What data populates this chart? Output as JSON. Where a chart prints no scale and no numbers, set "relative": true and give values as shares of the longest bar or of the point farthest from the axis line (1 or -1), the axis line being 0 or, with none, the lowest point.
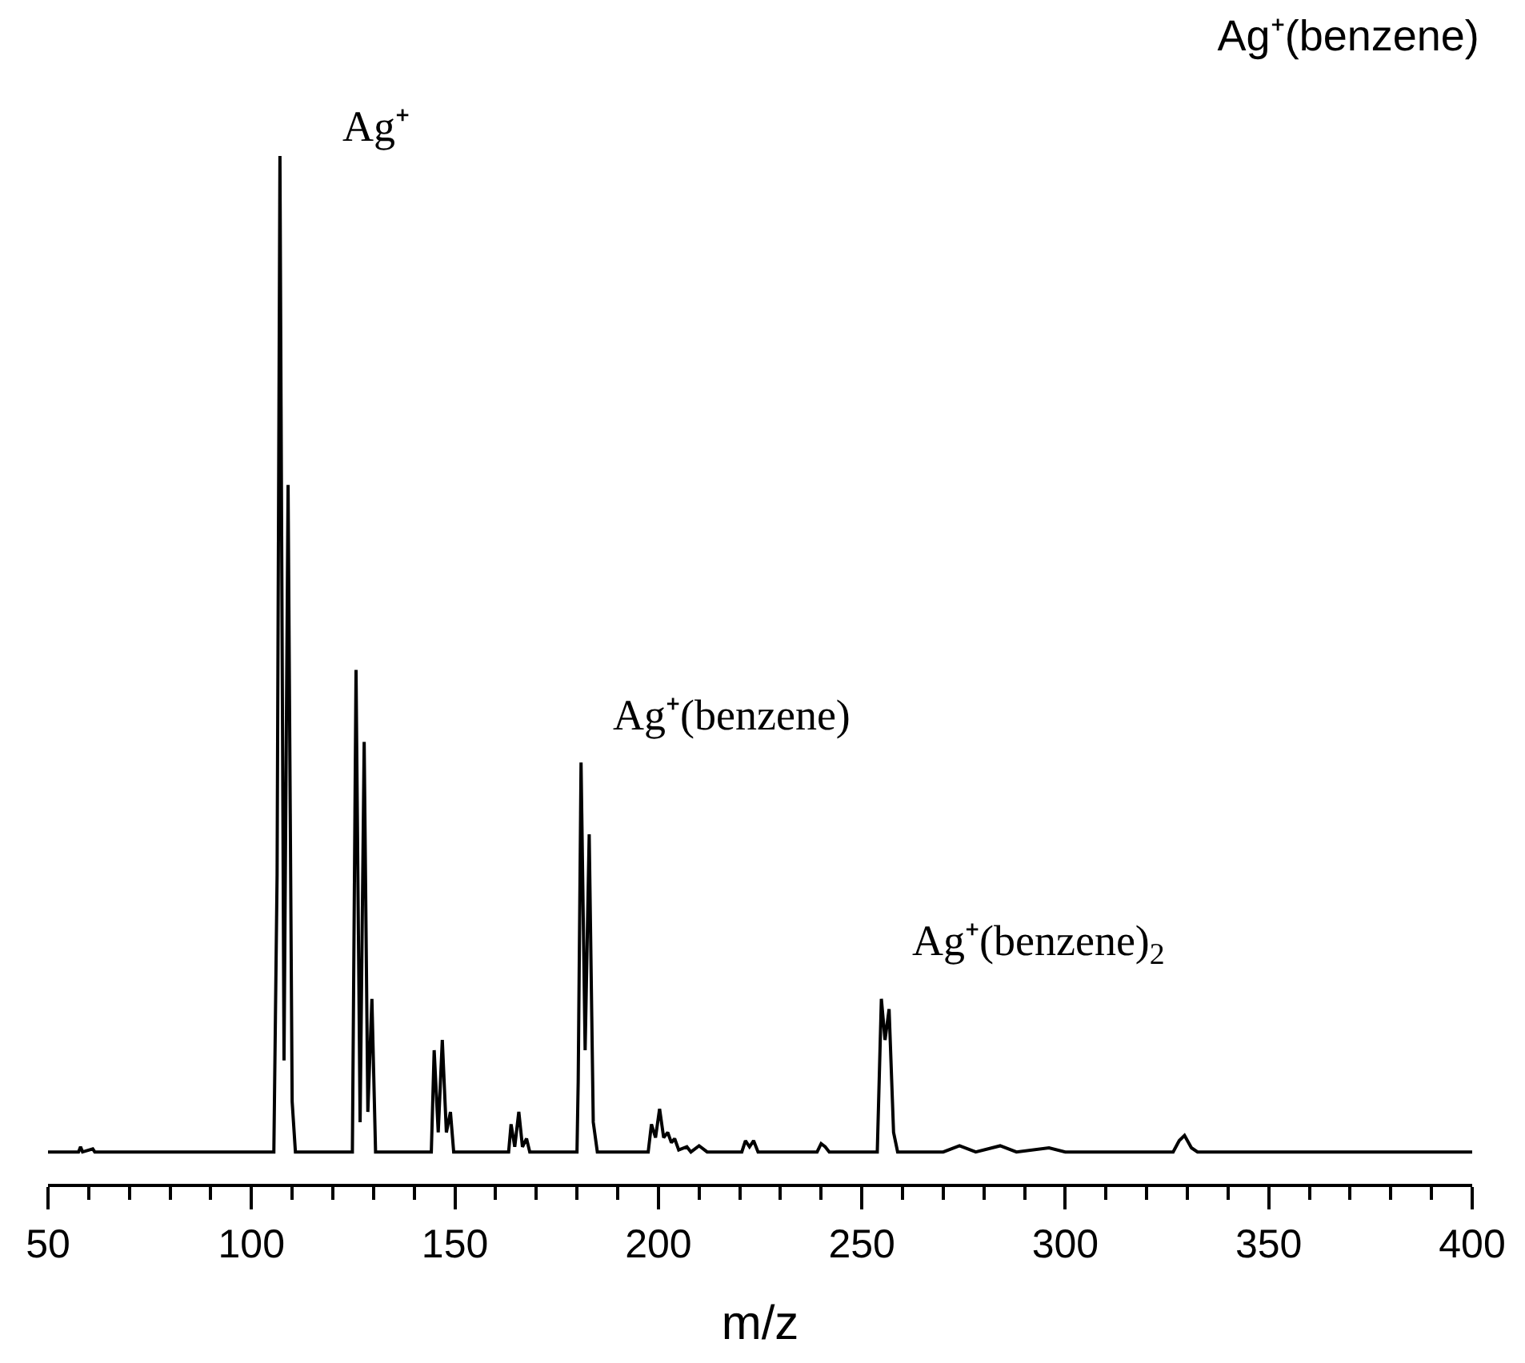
{
  "chart_data": {
    "type": "line",
    "title": "Ag⁺(benzene)",
    "xlabel": "m/z",
    "relative": true,
    "color": "#000000",
    "marker": "none",
    "line_style": "solid",
    "tick_labels": "x",
    "x": [
      50,
      57.5,
      58,
      58.5,
      61,
      61.5,
      105.5,
      106.3,
      107,
      108,
      109,
      110,
      110.8,
      124.8,
      125.7,
      126.7,
      127.7,
      128.6,
      129.6,
      130.5,
      144.2,
      144.9,
      145.9,
      146.9,
      147.9,
      148.9,
      149.7,
      163.2,
      163.8,
      164.7,
      165.7,
      166.6,
      167.6,
      168.4,
      180.0,
      180.3,
      181,
      182,
      183,
      184,
      185,
      197.5,
      198.3,
      199.3,
      200.3,
      201.3,
      202.3,
      203.2,
      204,
      205,
      207,
      208,
      210,
      212,
      220.5,
      221.4,
      222.4,
      223.4,
      224.5,
      239,
      240,
      241,
      242,
      253.8,
      254.8,
      255.7,
      256.7,
      257.8,
      258.8,
      270,
      274,
      278,
      284,
      288,
      296,
      300,
      326.5,
      328,
      329.3,
      331,
      332.5,
      400
    ],
    "values": [
      0.031,
      0.031,
      0.036,
      0.031,
      0.034,
      0.031,
      0.031,
      0.3,
      1.0,
      0.12,
      0.68,
      0.08,
      0.031,
      0.031,
      0.5,
      0.06,
      0.43,
      0.07,
      0.18,
      0.031,
      0.031,
      0.13,
      0.05,
      0.14,
      0.05,
      0.07,
      0.031,
      0.031,
      0.058,
      0.036,
      0.07,
      0.036,
      0.044,
      0.031,
      0.031,
      0.1,
      0.41,
      0.13,
      0.34,
      0.06,
      0.031,
      0.031,
      0.058,
      0.045,
      0.073,
      0.045,
      0.05,
      0.04,
      0.044,
      0.033,
      0.036,
      0.031,
      0.037,
      0.031,
      0.031,
      0.042,
      0.036,
      0.042,
      0.031,
      0.031,
      0.039,
      0.036,
      0.031,
      0.031,
      0.18,
      0.14,
      0.17,
      0.05,
      0.031,
      0.031,
      0.037,
      0.031,
      0.037,
      0.031,
      0.035,
      0.031,
      0.031,
      0.042,
      0.047,
      0.035,
      0.031,
      0.031
    ],
    "xlim": [
      50,
      400
    ],
    "xticks": [
      50,
      {
        "value": 60,
        "label": null
      },
      {
        "value": 70,
        "label": null
      },
      {
        "value": 80,
        "label": null
      },
      {
        "value": 90,
        "label": null
      },
      100,
      {
        "value": 110,
        "label": null
      },
      {
        "value": 120,
        "label": null
      },
      {
        "value": 130,
        "label": null
      },
      {
        "value": 140,
        "label": null
      },
      150,
      {
        "value": 160,
        "label": null
      },
      {
        "value": 170,
        "label": null
      },
      {
        "value": 180,
        "label": null
      },
      {
        "value": 190,
        "label": null
      },
      200,
      {
        "value": 210,
        "label": null
      },
      {
        "value": 220,
        "label": null
      },
      {
        "value": 230,
        "label": null
      },
      {
        "value": 240,
        "label": null
      },
      250,
      {
        "value": 260,
        "label": null
      },
      {
        "value": 270,
        "label": null
      },
      {
        "value": 280,
        "label": null
      },
      {
        "value": 290,
        "label": null
      },
      300,
      {
        "value": 310,
        "label": null
      },
      {
        "value": 320,
        "label": null
      },
      {
        "value": 330,
        "label": null
      },
      {
        "value": 340,
        "label": null
      },
      350,
      {
        "value": 360,
        "label": null
      },
      {
        "value": 370,
        "label": null
      },
      {
        "value": 380,
        "label": null
      },
      {
        "value": 390,
        "label": null
      },
      400
    ],
    "annotations": [
      "Ag⁺",
      "Ag⁺(benzene)",
      "Ag⁺(benzene)$_{2}$"
    ]
  }
}
